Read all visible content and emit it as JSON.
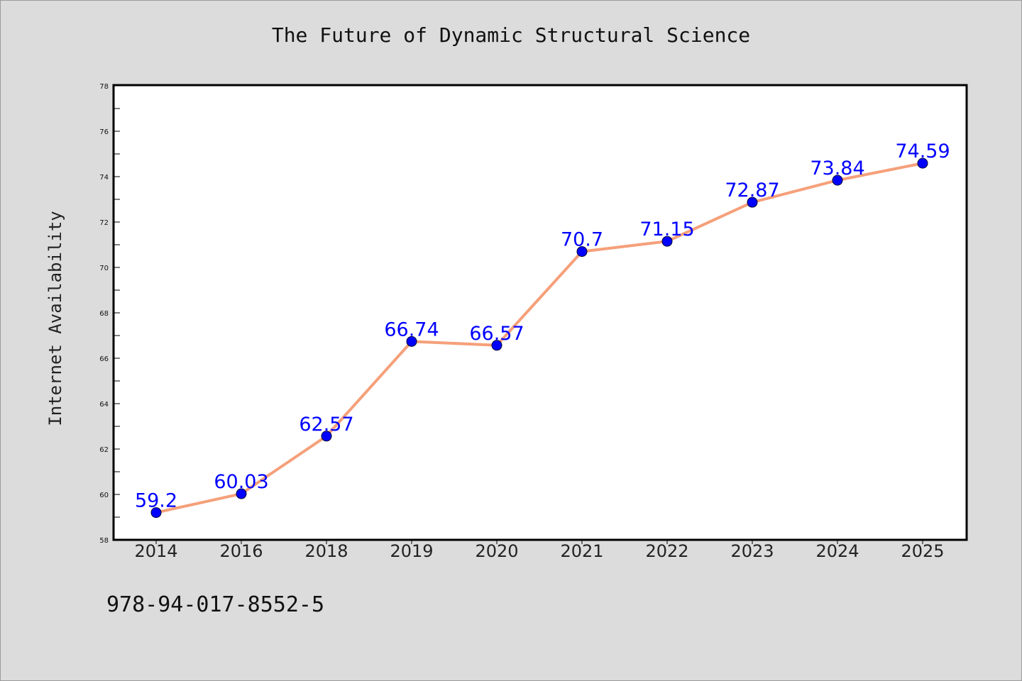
{
  "chart_data": {
    "type": "line",
    "title": "The Future of Dynamic Structural Science",
    "xlabel": "",
    "ylabel": "Internet Availability",
    "categories": [
      "2014",
      "2016",
      "2018",
      "2019",
      "2020",
      "2021",
      "2022",
      "2023",
      "2024",
      "2025"
    ],
    "series": [
      {
        "values": [
          59.2,
          60.03,
          62.57,
          66.74,
          66.57,
          70.7,
          71.15,
          72.87,
          73.84,
          74.59
        ],
        "data_labels": [
          "59.2",
          "60.03",
          "62.57",
          "66.74",
          "66.57",
          "70.7",
          "71.15",
          "72.87",
          "73.84",
          "74.59"
        ],
        "line_color": "#f5a07a",
        "marker_color": "#0000ff"
      }
    ],
    "ylim": [
      58,
      78
    ],
    "yticks": [
      "58",
      "60",
      "62",
      "64",
      "66",
      "68",
      "70",
      "72",
      "74",
      "76",
      "78"
    ],
    "grid": false,
    "legend": "none"
  },
  "footer": {
    "code": "978-94-017-8552-5"
  },
  "colors": {
    "background": "#dcdcdc",
    "plot_background": "#ffffff",
    "axes_frame": "#000000"
  }
}
